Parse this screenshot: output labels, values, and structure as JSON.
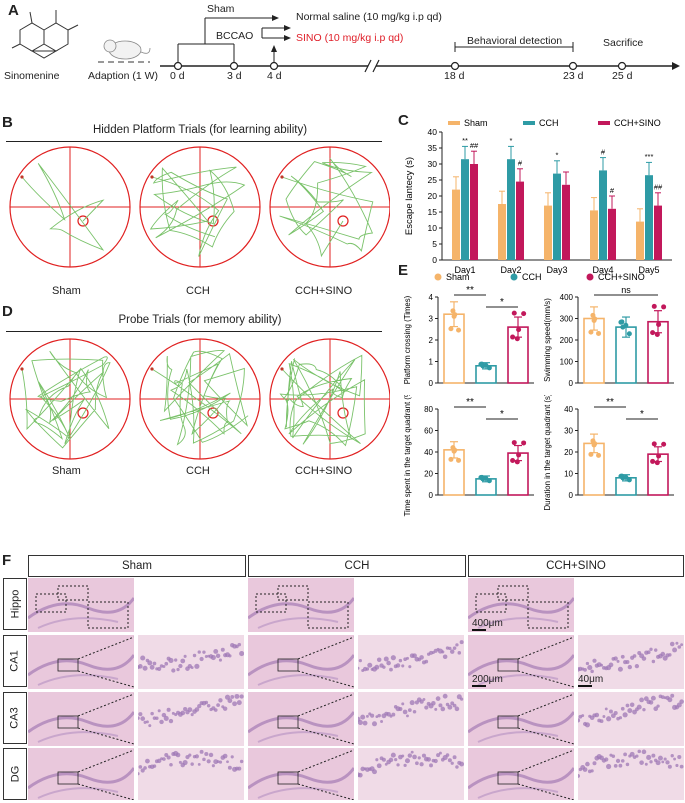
{
  "panel_letters": {
    "a": "A",
    "b": "B",
    "c": "C",
    "d": "D",
    "e": "E",
    "f": "F"
  },
  "timeline": {
    "drug_name": "Sinomenine",
    "adaption": "Adaption (1 W)",
    "days": [
      "0 d",
      "3 d",
      "4 d",
      "18 d",
      "23 d",
      "25 d"
    ],
    "sham": "Sham",
    "bccao": "BCCAO",
    "normal_saline": "Normal saline (10 mg/kg i.p qd)",
    "sino": "SINO (10 mg/kg i.p qd)",
    "behavioral": "Behavioral detection",
    "sacrifice": "Sacrifice",
    "sino_color": "#e0202a"
  },
  "panel_b": {
    "title": "Hidden Platform Trials (for learning ability)",
    "groups": [
      "Sham",
      "CCH",
      "CCH+SINO"
    ]
  },
  "panel_d": {
    "title": "Probe Trials (for memory ability)",
    "groups": [
      "Sham",
      "CCH",
      "CCH+SINO"
    ]
  },
  "colors": {
    "sham": "#f5b46a",
    "cch": "#2e9ba5",
    "sino": "#c2185b",
    "track": "#7ac26a",
    "pool": "#e02020"
  },
  "chart_data": [
    {
      "id": "C",
      "type": "bar",
      "ylabel": "Escape lantecy (s)",
      "ylim": [
        0,
        40
      ],
      "yticks": [
        "0",
        "5",
        "10",
        "15",
        "20",
        "25",
        "30",
        "35",
        "40"
      ],
      "categories": [
        "Day1",
        "Day2",
        "Day3",
        "Day4",
        "Day5"
      ],
      "legend": [
        "Sham",
        "CCH",
        "CCH+SINO"
      ],
      "series": [
        {
          "name": "Sham",
          "values": [
            22,
            17.5,
            17,
            15.5,
            12
          ]
        },
        {
          "name": "CCH",
          "values": [
            31.5,
            31.5,
            27,
            28,
            26.5
          ]
        },
        {
          "name": "CCH+SINO",
          "values": [
            30,
            24.5,
            23.5,
            16,
            17
          ]
        }
      ],
      "annotations": [
        {
          "day": "Day1",
          "cch": "**",
          "sino": "##"
        },
        {
          "day": "Day2",
          "cch": "*",
          "sino": "#"
        },
        {
          "day": "Day3",
          "cch": "*",
          "sino": ""
        },
        {
          "day": "Day4",
          "cch": "#",
          "sino": "#"
        },
        {
          "day": "Day5",
          "cch": "***",
          "sino": "##"
        }
      ]
    },
    {
      "id": "E1",
      "type": "bar",
      "ylabel": "Platform crossing (Times)",
      "ylim": [
        0,
        4
      ],
      "yticks": [
        "0",
        "1",
        "2",
        "3",
        "4"
      ],
      "categories": [
        "Sham",
        "CCH",
        "CCH+SINO"
      ],
      "values": [
        3.2,
        0.8,
        2.6
      ],
      "sig": [
        {
          "text": "**"
        },
        {
          "text": "*"
        }
      ]
    },
    {
      "id": "E2",
      "type": "bar",
      "ylabel": "Swimming speed(mm/s)",
      "ylim": [
        0,
        400
      ],
      "yticks": [
        "0",
        "100",
        "200",
        "300",
        "400"
      ],
      "categories": [
        "Sham",
        "CCH",
        "CCH+SINO"
      ],
      "values": [
        300,
        260,
        285
      ],
      "sig": [
        {
          "text": "ns"
        }
      ]
    },
    {
      "id": "E3",
      "type": "bar",
      "ylabel": "Time spent in the target quadrant (%)",
      "ylim": [
        0,
        80
      ],
      "yticks": [
        "0",
        "20",
        "40",
        "60",
        "80"
      ],
      "categories": [
        "Sham",
        "CCH",
        "CCH+SINO"
      ],
      "values": [
        42,
        15,
        39
      ],
      "sig": [
        {
          "text": "**"
        },
        {
          "text": "*"
        }
      ]
    },
    {
      "id": "E4",
      "type": "bar",
      "ylabel": "Duration in the target quadrant (s)",
      "ylim": [
        0,
        40
      ],
      "yticks": [
        "0",
        "10",
        "20",
        "30",
        "40"
      ],
      "categories": [
        "Sham",
        "CCH",
        "CCH+SINO"
      ],
      "values": [
        24,
        8,
        19
      ],
      "sig": [
        {
          "text": "**"
        },
        {
          "text": "*"
        }
      ]
    }
  ],
  "panel_e_legend": [
    "Sham",
    "CCH",
    "CCH+SINO"
  ],
  "panel_f": {
    "groups": [
      "Sham",
      "CCH",
      "CCH+SINO"
    ],
    "rows": [
      "Hippo",
      "CA1",
      "CA3",
      "DG"
    ],
    "scale_400": "400μm",
    "scale_200": "200μm",
    "scale_40": "40μm"
  }
}
